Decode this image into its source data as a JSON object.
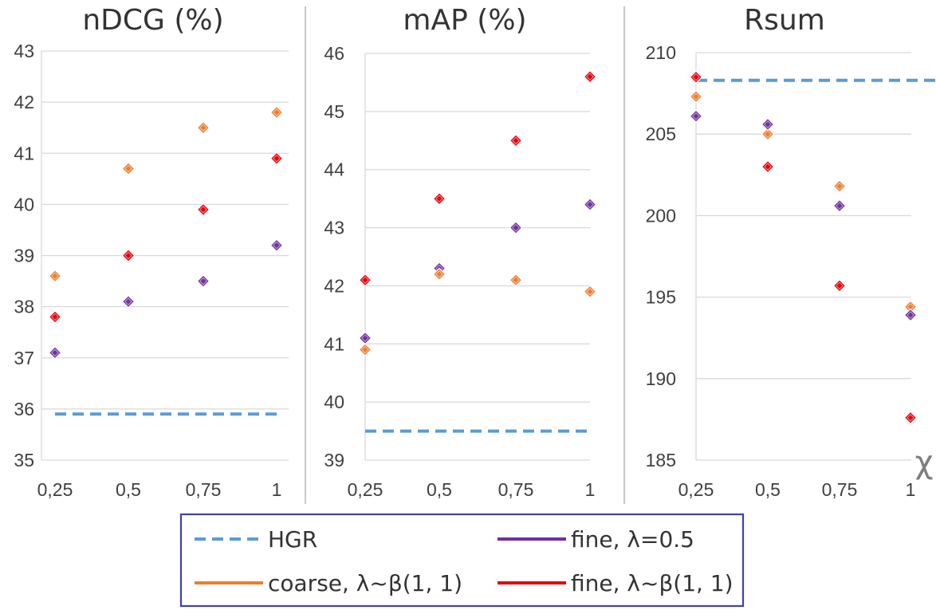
{
  "legend": [
    {
      "key": "hgr",
      "label": "HGR",
      "color": "#5B9BD5",
      "dashed": true
    },
    {
      "key": "fine05",
      "label": "fine, λ=0.5",
      "color": "#7030A0",
      "dashed": false
    },
    {
      "key": "coarse",
      "label": "coarse, λ~β(1, 1)",
      "color": "#ED7D31",
      "dashed": false
    },
    {
      "key": "fineb",
      "label": "fine, λ~β(1, 1)",
      "color": "#E8000B",
      "dashed": false
    }
  ],
  "corner_symbol": "χ",
  "chart_data": [
    {
      "type": "scatter",
      "title": "nDCG (%)",
      "categories": [
        "0,25",
        "0,5",
        "0,75",
        "1"
      ],
      "x": [
        0.25,
        0.5,
        0.75,
        1
      ],
      "ylim": [
        35,
        43
      ],
      "yticks": [
        "35",
        "36",
        "37",
        "38",
        "39",
        "40",
        "41",
        "42",
        "43"
      ],
      "grid": true,
      "hgr": 35.9,
      "series": [
        {
          "name": "coarse, λ~β(1, 1)",
          "key": "coarse",
          "values": [
            38.6,
            40.7,
            41.5,
            41.8
          ]
        },
        {
          "name": "fine, λ~β(1, 1)",
          "key": "fineb",
          "values": [
            37.8,
            39.0,
            39.9,
            40.9
          ]
        },
        {
          "name": "fine, λ=0.5",
          "key": "fine05",
          "values": [
            37.1,
            38.1,
            38.5,
            39.2
          ]
        }
      ]
    },
    {
      "type": "scatter",
      "title": "mAP (%)",
      "categories": [
        "0,25",
        "0,5",
        "0,75",
        "1"
      ],
      "x": [
        0.25,
        0.5,
        0.75,
        1
      ],
      "ylim": [
        39,
        46
      ],
      "yticks": [
        "39",
        "40",
        "41",
        "42",
        "43",
        "44",
        "45",
        "46"
      ],
      "grid": true,
      "hgr": 39.5,
      "series": [
        {
          "name": "fine, λ~β(1, 1)",
          "key": "fineb",
          "values": [
            42.1,
            43.5,
            44.5,
            45.6
          ]
        },
        {
          "name": "fine, λ=0.5",
          "key": "fine05",
          "values": [
            41.1,
            42.3,
            43.0,
            43.4
          ]
        },
        {
          "name": "coarse, λ~β(1, 1)",
          "key": "coarse",
          "values": [
            40.9,
            42.2,
            42.1,
            41.9
          ]
        }
      ]
    },
    {
      "type": "scatter",
      "title": "Rsum",
      "categories": [
        "0,25",
        "0,5",
        "0,75",
        "1"
      ],
      "x": [
        0.25,
        0.5,
        0.75,
        1
      ],
      "ylim": [
        185,
        210
      ],
      "yticks": [
        "185",
        "190",
        "195",
        "200",
        "205",
        "210"
      ],
      "grid": true,
      "hgr": 208.3,
      "series": [
        {
          "name": "fine, λ~β(1, 1)",
          "key": "fineb",
          "values": [
            208.5,
            203.0,
            195.7,
            187.6
          ]
        },
        {
          "name": "coarse, λ~β(1, 1)",
          "key": "coarse",
          "values": [
            207.3,
            205.0,
            201.8,
            194.4
          ]
        },
        {
          "name": "fine, λ=0.5",
          "key": "fine05",
          "values": [
            206.1,
            205.6,
            200.6,
            193.9
          ]
        }
      ]
    }
  ]
}
